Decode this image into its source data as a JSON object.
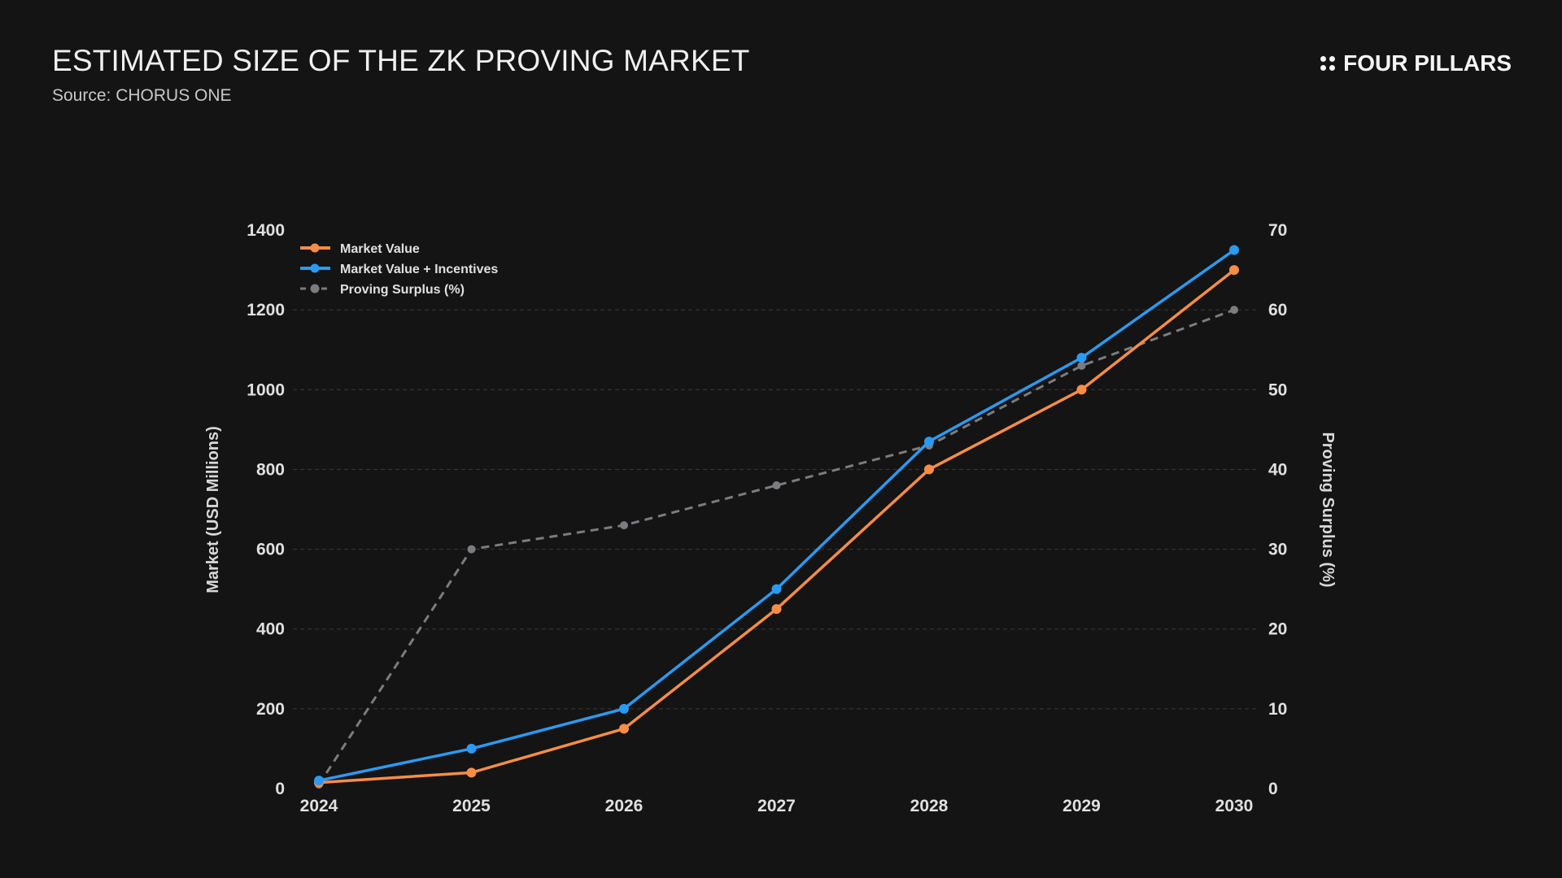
{
  "header": {
    "title": "ESTIMATED SIZE OF THE ZK PROVING MARKET",
    "source": "Source: CHORUS ONE",
    "logo_text": "FOUR PILLARS"
  },
  "chart_data": {
    "type": "line",
    "x": [
      "2024",
      "2025",
      "2026",
      "2027",
      "2028",
      "2029",
      "2030"
    ],
    "series": [
      {
        "name": "Market Value",
        "axis": "left",
        "color": "#f98d45",
        "style": "solid",
        "values": [
          15,
          40,
          150,
          450,
          800,
          1000,
          1300
        ]
      },
      {
        "name": "Market Value + Incentives",
        "axis": "left",
        "color": "#2b9af3",
        "style": "solid",
        "values": [
          20,
          100,
          200,
          500,
          870,
          1080,
          1350
        ]
      },
      {
        "name": "Proving Surplus (%)",
        "axis": "right",
        "color": "#7c7c80",
        "style": "dashed",
        "values": [
          0.5,
          30,
          33,
          38,
          43,
          53,
          60
        ]
      }
    ],
    "ylabel": "Market (USD Millions)",
    "y2label": "Proving Surplus (%)",
    "ylim": [
      0,
      1400
    ],
    "y2lim": [
      0,
      70
    ],
    "yticks": [
      "0",
      "200",
      "400",
      "600",
      "800",
      "1000",
      "1200",
      "1400"
    ],
    "y2ticks": [
      "0",
      "10",
      "20",
      "30",
      "40",
      "50",
      "60",
      "70"
    ],
    "grid": true,
    "legend": "top-left"
  }
}
